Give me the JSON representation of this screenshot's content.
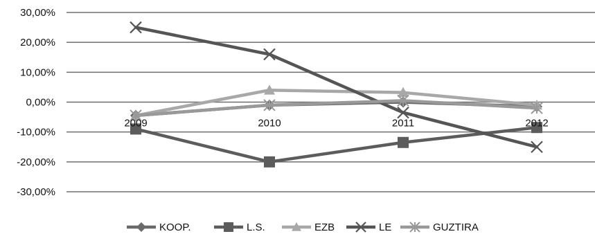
{
  "chart_data": {
    "type": "line",
    "title": "",
    "xlabel": "",
    "ylabel": "",
    "categories": [
      "2009",
      "2010",
      "2011",
      "2012"
    ],
    "ylim": [
      -30,
      30
    ],
    "yticks": [
      30,
      20,
      10,
      0,
      -10,
      -20,
      -30
    ],
    "ytick_labels": [
      "30,00%",
      "20,00%",
      "10,00%",
      "0,00%",
      "-10,00%",
      "-20,00%",
      "-30,00%"
    ],
    "grid": "horizontal",
    "legend_position": "bottom",
    "series": [
      {
        "name": "KOOP.",
        "marker": "diamond",
        "color": "#6a6a6a",
        "values": [
          -4.5,
          -1.0,
          0.0,
          -1.5
        ]
      },
      {
        "name": "L.S.",
        "marker": "square",
        "color": "#5c5c5c",
        "values": [
          -9.0,
          -20.0,
          -13.5,
          -8.5
        ]
      },
      {
        "name": "EZB",
        "marker": "triangle",
        "color": "#a8a8a8",
        "values": [
          -4.5,
          4.0,
          3.2,
          -1.0
        ]
      },
      {
        "name": "LE",
        "marker": "x",
        "color": "#555555",
        "values": [
          25.0,
          16.0,
          -3.5,
          -15.0
        ]
      },
      {
        "name": "GUZTIRA",
        "marker": "asterisk",
        "color": "#999999",
        "values": [
          -4.5,
          -1.0,
          0.5,
          -2.0
        ]
      }
    ]
  }
}
